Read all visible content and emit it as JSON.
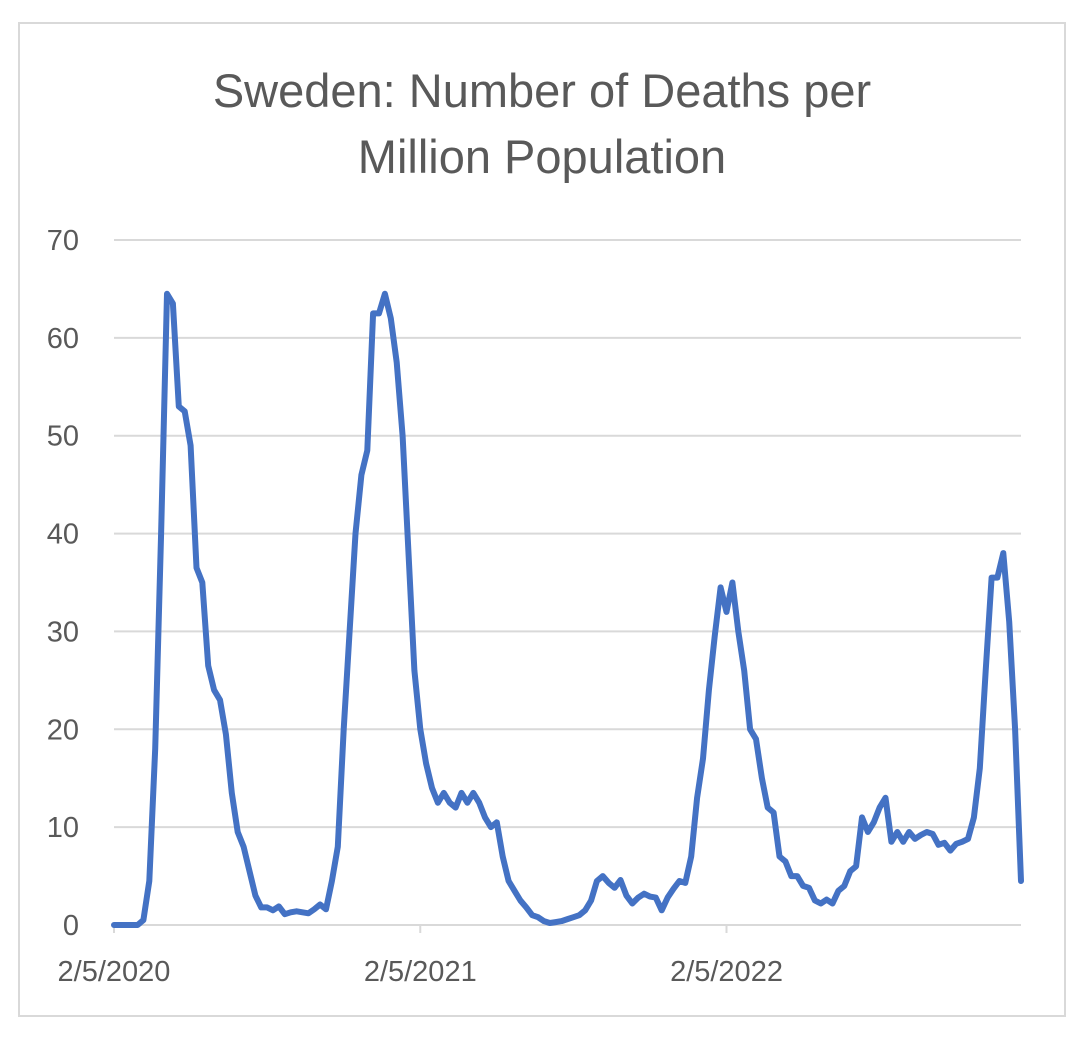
{
  "chart_data": {
    "type": "line",
    "title": "Sweden: Number of Deaths per\nMillion Population",
    "xlabel": "",
    "ylabel": "",
    "ylim": [
      0,
      70
    ],
    "yticks": [
      "0",
      "10",
      "20",
      "30",
      "40",
      "50",
      "60",
      "70"
    ],
    "xticks": [
      {
        "label": "2/5/2020",
        "index": 0
      },
      {
        "label": "2/5/2021",
        "index": 52
      },
      {
        "label": "2/5/2022",
        "index": 104
      }
    ],
    "grid": true,
    "line_color": "#4472C4",
    "series": [
      {
        "name": "Sweden",
        "values": [
          0,
          0,
          0,
          0,
          0,
          0.5,
          4.5,
          18,
          40,
          64.5,
          63.5,
          53,
          52.5,
          49,
          36.5,
          35,
          26.5,
          24,
          23,
          19.5,
          13.5,
          9.5,
          8,
          5.5,
          3,
          1.8,
          1.8,
          1.5,
          1.9,
          1.1,
          1.3,
          1.4,
          1.3,
          1.2,
          1.6,
          2.1,
          1.6,
          4.5,
          8,
          20,
          30,
          40,
          46,
          48.5,
          62.5,
          62.5,
          64.5,
          62,
          57.5,
          50,
          38,
          26,
          20,
          16.5,
          14,
          12.5,
          13.5,
          12.5,
          12,
          13.5,
          12.5,
          13.5,
          12.5,
          11,
          10,
          10.5,
          7,
          4.5,
          3.5,
          2.5,
          1.8,
          1,
          0.8,
          0.4,
          0.2,
          0.3,
          0.4,
          0.6,
          0.8,
          1,
          1.5,
          2.5,
          4.5,
          5,
          4.3,
          3.8,
          4.6,
          3,
          2.2,
          2.8,
          3.2,
          2.9,
          2.8,
          1.5,
          2.8,
          3.7,
          4.5,
          4.3,
          7,
          13,
          17,
          24,
          29.5,
          34.5,
          32,
          35,
          30,
          26,
          20,
          19,
          15,
          12,
          11.5,
          7,
          6.5,
          5,
          5,
          4,
          3.8,
          2.5,
          2.2,
          2.6,
          2.2,
          3.5,
          4,
          5.5,
          6,
          11,
          9.5,
          10.5,
          12,
          13,
          8.5,
          9.5,
          8.5,
          9.5,
          8.8,
          9.2,
          9.5,
          9.3,
          8.2,
          8.4,
          7.6,
          8.3,
          8.5,
          8.8,
          11,
          16,
          26,
          35.5,
          35.5,
          38,
          31,
          20,
          4.5
        ]
      }
    ]
  }
}
